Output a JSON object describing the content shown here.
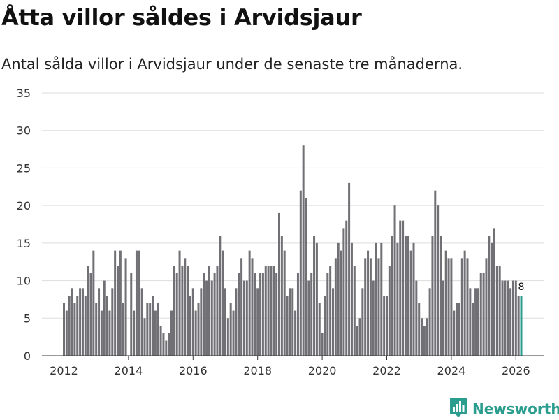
{
  "header": {
    "title": "Åtta villor såldes i Arvidsjaur",
    "subtitle": "Antal sålda villor i Arvidsjaur under de senaste tre månaderna."
  },
  "brand": {
    "name": "Newsworthy",
    "icon": "bar-chart-logo-icon"
  },
  "colors": {
    "bar": "#717075",
    "highlight": "#2a9d8f",
    "grid": "#dddddd",
    "axis": "#333333"
  },
  "chart_data": {
    "type": "bar",
    "title": "Åtta villor såldes i Arvidsjaur",
    "xlabel": "",
    "ylabel": "",
    "ylim": [
      0,
      35
    ],
    "yticks": [
      0,
      5,
      10,
      15,
      20,
      25,
      30,
      35
    ],
    "xticks": [
      "2012",
      "2014",
      "2016",
      "2018",
      "2020",
      "2022",
      "2024",
      "2026"
    ],
    "start": "2012-01",
    "last_label": "8",
    "values": [
      7,
      6,
      8,
      9,
      7,
      8,
      9,
      9,
      8,
      12,
      11,
      14,
      7,
      9,
      6,
      10,
      8,
      6,
      9,
      14,
      12,
      14,
      7,
      13,
      0,
      11,
      6,
      14,
      14,
      9,
      5,
      7,
      7,
      8,
      6,
      7,
      4,
      3,
      2,
      3,
      6,
      12,
      11,
      14,
      12,
      13,
      12,
      8,
      9,
      6,
      7,
      9,
      11,
      10,
      12,
      10,
      11,
      12,
      16,
      14,
      9,
      5,
      7,
      6,
      9,
      11,
      13,
      10,
      10,
      14,
      13,
      11,
      9,
      11,
      11,
      12,
      12,
      12,
      12,
      11,
      19,
      16,
      14,
      8,
      9,
      9,
      6,
      11,
      22,
      28,
      21,
      10,
      11,
      16,
      15,
      7,
      3,
      8,
      11,
      12,
      9,
      13,
      15,
      14,
      17,
      18,
      23,
      15,
      12,
      4,
      5,
      9,
      13,
      14,
      13,
      10,
      15,
      13,
      15,
      8,
      8,
      12,
      16,
      20,
      15,
      18,
      18,
      16,
      16,
      14,
      15,
      10,
      7,
      5,
      4,
      5,
      9,
      16,
      22,
      20,
      16,
      10,
      14,
      13,
      13,
      6,
      7,
      7,
      13,
      14,
      13,
      9,
      7,
      9,
      9,
      11,
      11,
      13,
      16,
      15,
      17,
      12,
      12,
      10,
      10,
      10,
      9,
      10,
      10,
      8,
      8
    ]
  }
}
